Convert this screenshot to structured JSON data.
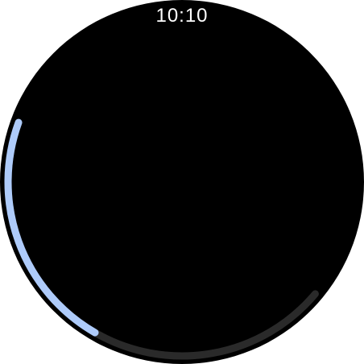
{
  "status_bar": {
    "time": "10:10"
  },
  "scroll_indicator": {
    "position_fraction": 0.0,
    "visible_fraction": 0.5
  },
  "colors": {
    "background": "#000000",
    "track": "#2a2a2a",
    "indicator": "#aecbfa",
    "time_text": "#ffffff"
  }
}
